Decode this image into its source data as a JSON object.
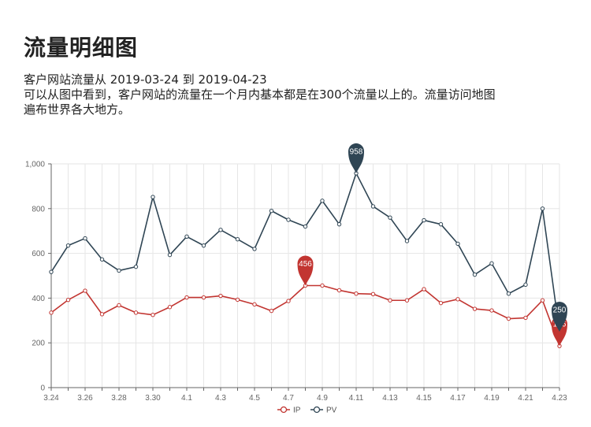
{
  "page": {
    "title": "流量明细图",
    "description_lines": [
      "客户网站流量从 2019-03-24 到 2019-04-23",
      "可以从图中看到，客户网站的流量在一个月内基本都是在300个流量以上的。流量访问地图",
      "遍布世界各大地方。"
    ]
  },
  "chart_data": {
    "type": "line",
    "x": [
      "3.24",
      "3.25",
      "3.26",
      "3.27",
      "3.28",
      "3.29",
      "3.30",
      "3.31",
      "4.1",
      "4.2",
      "4.3",
      "4.4",
      "4.5",
      "4.6",
      "4.7",
      "4.8",
      "4.9",
      "4.10",
      "4.11",
      "4.12",
      "4.13",
      "4.14",
      "4.15",
      "4.16",
      "4.17",
      "4.18",
      "4.19",
      "4.20",
      "4.21",
      "4.22",
      "4.23"
    ],
    "x_tick_labels": [
      "3.24",
      "",
      "3.26",
      "",
      "3.28",
      "",
      "3.30",
      "",
      "4.1",
      "",
      "4.3",
      "",
      "4.5",
      "",
      "4.7",
      "",
      "4.9",
      "",
      "4.11",
      "",
      "4.13",
      "",
      "4.15",
      "",
      "4.17",
      "",
      "4.19",
      "",
      "4.21",
      "",
      "4.23"
    ],
    "y_ticks": [
      "0",
      "200",
      "400",
      "600",
      "800",
      "1,000"
    ],
    "ylim": [
      0,
      1000
    ],
    "grid": true,
    "legend_position": "bottom-center",
    "series": [
      {
        "name": "IP",
        "color": "#c23531",
        "values": [
          335,
          392,
          433,
          328,
          368,
          335,
          325,
          360,
          403,
          403,
          410,
          393,
          372,
          343,
          387,
          456,
          456,
          435,
          420,
          418,
          390,
          390,
          440,
          378,
          395,
          352,
          345,
          308,
          312,
          390,
          186
        ],
        "max_label": "456",
        "max_index": 15,
        "min_label": "186",
        "min_index": 30
      },
      {
        "name": "PV",
        "color": "#2f4554",
        "values": [
          517,
          635,
          667,
          573,
          523,
          540,
          852,
          593,
          675,
          635,
          705,
          663,
          620,
          790,
          750,
          720,
          835,
          730,
          958,
          810,
          760,
          655,
          748,
          730,
          643,
          505,
          555,
          420,
          460,
          800,
          250
        ],
        "max_label": "958",
        "max_index": 18,
        "min_label": "250",
        "min_index": 30
      }
    ]
  }
}
